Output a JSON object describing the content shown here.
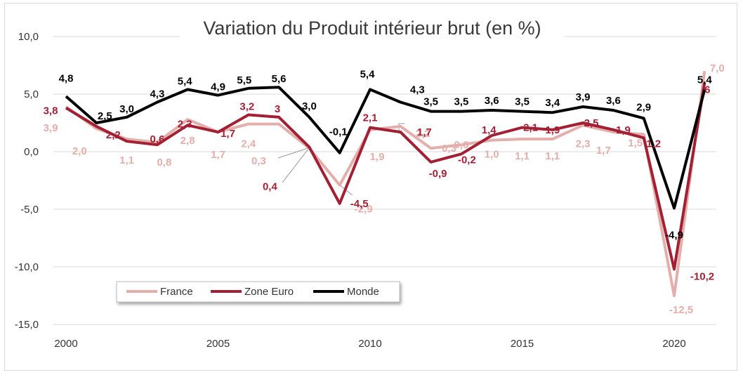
{
  "chart_data": {
    "type": "line",
    "title": "Variation du Produit intérieur brut (en %)",
    "x": [
      2000,
      2001,
      2002,
      2003,
      2004,
      2005,
      2006,
      2007,
      2008,
      2009,
      2010,
      2011,
      2012,
      2013,
      2014,
      2015,
      2016,
      2017,
      2018,
      2019,
      2020,
      2021
    ],
    "x_ticks": [
      2000,
      2005,
      2010,
      2015,
      2020
    ],
    "x_tick_labels": [
      "2000",
      "2005",
      "2010",
      "2015",
      "2020"
    ],
    "ylim": [
      -15,
      10
    ],
    "y_ticks": [
      10,
      5,
      0,
      -5,
      -10,
      -15
    ],
    "y_tick_labels": [
      "10,0",
      "5,0",
      "0,0",
      "-5,0",
      "-10,0",
      "-15,0"
    ],
    "grid": "horizontal",
    "legend": "bottom-left",
    "series": [
      {
        "name": "France",
        "color": "#e4aeaa",
        "values": [
          3.9,
          2.0,
          1.1,
          0.8,
          2.8,
          1.7,
          2.4,
          2.4,
          0.3,
          -2.9,
          1.9,
          2.2,
          0.3,
          0.6,
          1.0,
          1.1,
          1.1,
          2.3,
          1.7,
          1.5,
          -12.5,
          7.0
        ],
        "labels": [
          "3,9",
          "2,0",
          "1,1",
          "0,8",
          "2,8",
          "1,7",
          "2,4",
          "",
          "0,3",
          "-2,9",
          "1,9",
          "2,2",
          "0,3",
          "0,6",
          "1,0",
          "1,1",
          "1,1",
          "2,3",
          "1,7",
          "1,5",
          "-12,5",
          "7,0"
        ]
      },
      {
        "name": "Zone Euro",
        "color": "#a31f34",
        "values": [
          3.8,
          2.2,
          0.9,
          0.6,
          2.3,
          1.7,
          3.2,
          3.0,
          0.4,
          -4.5,
          2.1,
          1.7,
          -0.9,
          -0.2,
          1.4,
          2.1,
          1.9,
          2.5,
          1.9,
          1.2,
          -10.2,
          6.0
        ],
        "labels": [
          "3,8",
          "2,2",
          "",
          "0,6",
          "2,3",
          "1,7",
          "3,2",
          "3",
          "0,4",
          "-4,5",
          "2,1",
          "1,7",
          "-0,9",
          "-0,2",
          "1,4",
          "2,1",
          "1,9",
          "2,5",
          "1,9",
          "1,2",
          "-10,2",
          "6"
        ]
      },
      {
        "name": "Monde",
        "color": "#000000",
        "values": [
          4.8,
          2.5,
          3.0,
          4.3,
          5.4,
          4.9,
          5.5,
          5.6,
          3.0,
          -0.1,
          5.4,
          4.3,
          3.5,
          3.5,
          3.6,
          3.5,
          3.4,
          3.9,
          3.6,
          2.9,
          -4.9,
          5.4
        ],
        "labels": [
          "4,8",
          "2,5",
          "3,0",
          "4,3",
          "5,4",
          "4,9",
          "5,5",
          "5,6",
          "3,0",
          "-0,1",
          "5,4",
          "4,3",
          "3,5",
          "3,5",
          "3,6",
          "3,5",
          "3,4",
          "3,9",
          "3,6",
          "2,9",
          "-4,9",
          "5,4"
        ]
      }
    ]
  }
}
